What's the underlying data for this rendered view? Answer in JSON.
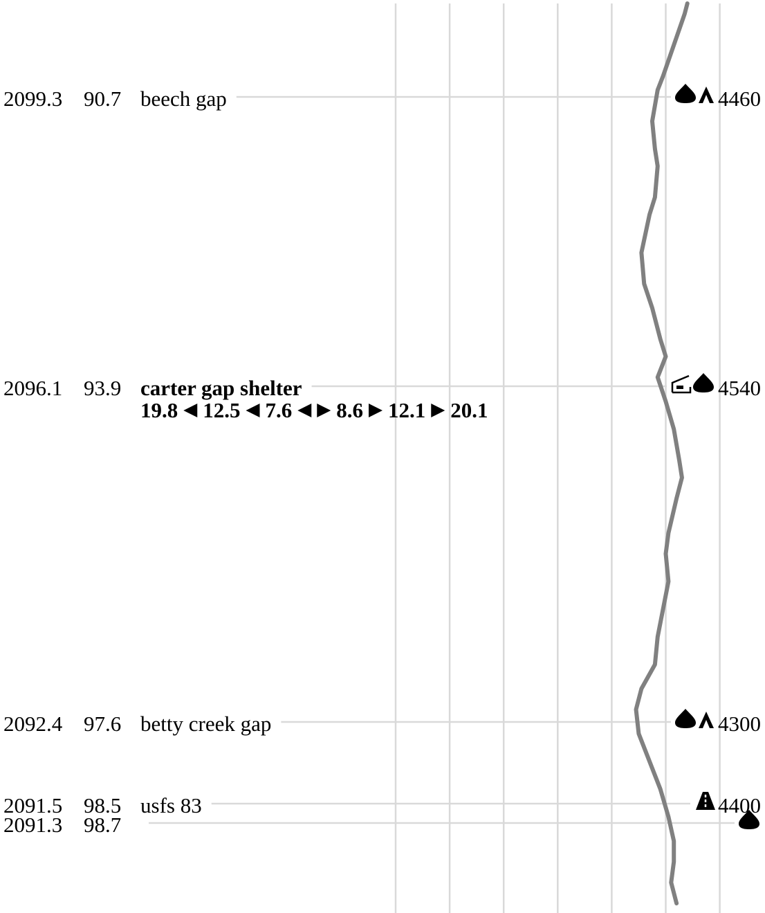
{
  "waypoints": [
    {
      "mile_nb": "2099.3",
      "mile_sb": "90.7",
      "name": "beech gap",
      "bold": false,
      "elevation": "4460",
      "icons": [
        "water-icon",
        "tent-icon"
      ]
    },
    {
      "mile_nb": "2096.1",
      "mile_sb": "93.9",
      "name": "carter gap shelter",
      "bold": true,
      "elevation": "4540",
      "icons": [
        "shelter-icon",
        "water-icon"
      ],
      "shelter_distances": {
        "back": [
          "19.8",
          "12.5",
          "7.6"
        ],
        "ahead": [
          "8.6",
          "12.1",
          "20.1"
        ]
      }
    },
    {
      "mile_nb": "2092.4",
      "mile_sb": "97.6",
      "name": "betty creek gap",
      "bold": false,
      "elevation": "4300",
      "icons": [
        "water-icon",
        "tent-icon"
      ]
    },
    {
      "mile_nb": "2091.5",
      "mile_sb": "98.5",
      "name": "usfs 83",
      "bold": false,
      "elevation": "4400",
      "icons": [
        "road-icon"
      ]
    },
    {
      "mile_nb": "2091.3",
      "mile_sb": "98.7",
      "name": "",
      "bold": false,
      "elevation": "",
      "icons": [
        "water-icon"
      ]
    }
  ],
  "elevation_profile": [
    [
      4040,
      5
    ],
    [
      4035,
      20
    ],
    [
      4015,
      65
    ],
    [
      3995,
      110
    ],
    [
      3985,
      130
    ],
    [
      3975,
      175
    ],
    [
      3980,
      215
    ],
    [
      3985,
      240
    ],
    [
      3980,
      285
    ],
    [
      3970,
      310
    ],
    [
      3955,
      365
    ],
    [
      3960,
      410
    ],
    [
      3975,
      445
    ],
    [
      3990,
      490
    ],
    [
      4000,
      515
    ],
    [
      3985,
      545
    ],
    [
      4000,
      580
    ],
    [
      4015,
      620
    ],
    [
      4025,
      665
    ],
    [
      4030,
      690
    ],
    [
      4020,
      720
    ],
    [
      4005,
      770
    ],
    [
      4000,
      800
    ],
    [
      4005,
      840
    ],
    [
      3995,
      880
    ],
    [
      3985,
      920
    ],
    [
      3980,
      960
    ],
    [
      3955,
      995
    ],
    [
      3945,
      1025
    ],
    [
      3950,
      1060
    ],
    [
      3970,
      1100
    ],
    [
      3990,
      1140
    ],
    [
      4005,
      1180
    ],
    [
      4015,
      1215
    ],
    [
      4015,
      1245
    ],
    [
      4010,
      1275
    ],
    [
      4020,
      1305
    ]
  ],
  "elevation_axis": {
    "min_ft": 3500,
    "max_ft": 4500,
    "gridlines": [
      3500,
      3600,
      3700,
      3800,
      3900,
      4000,
      4100
    ]
  },
  "colors": {
    "profile": "#808080",
    "grid": "#d9d9d9",
    "text": "#000000"
  }
}
